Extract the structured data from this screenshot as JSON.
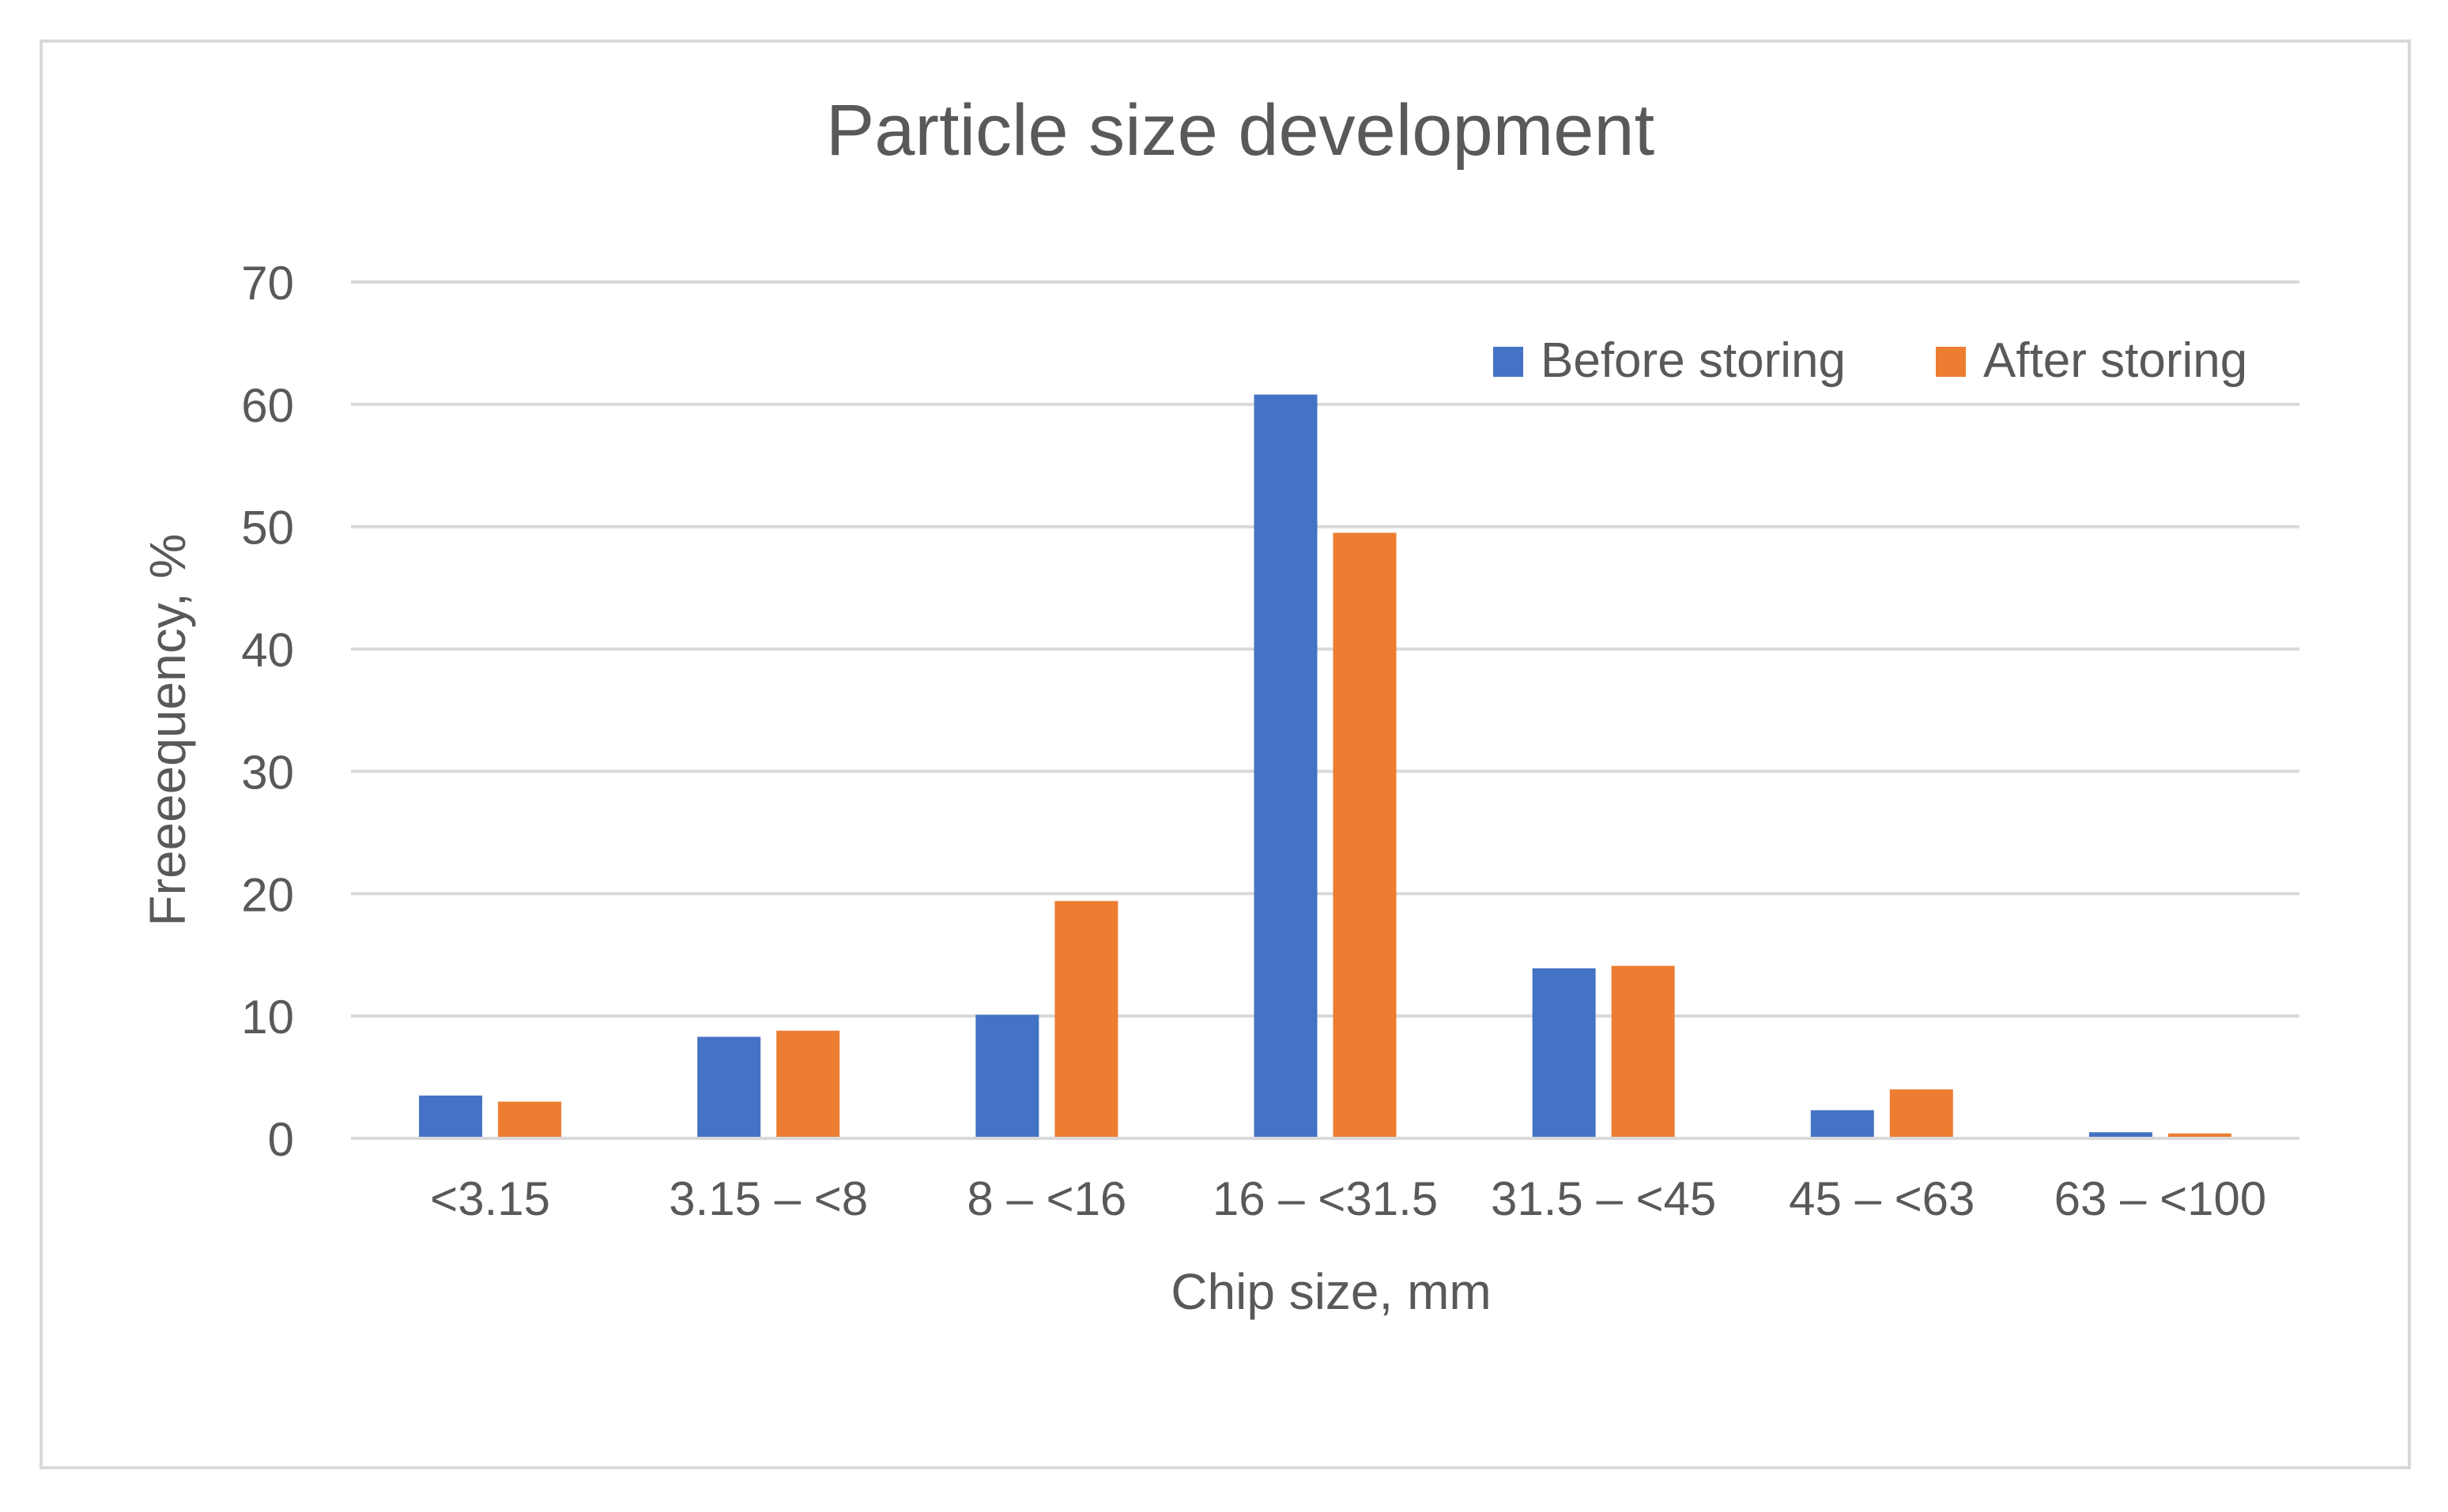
{
  "chart_data": {
    "type": "bar",
    "title": "Particle size development",
    "xlabel": "Chip size, mm",
    "ylabel": "Freeeequency, %",
    "categories": [
      "<3.15",
      "3.15 – <8",
      "8 – <16",
      "16 – <31.5",
      "31.5 – <45",
      "45 – <63",
      "63 – <100"
    ],
    "series": [
      {
        "name": "Before storing",
        "color": "#4472c4",
        "values": [
          3.5,
          8.3,
          10.1,
          60.8,
          13.9,
          2.3,
          0.5
        ]
      },
      {
        "name": "After storing",
        "color": "#ed7d31",
        "values": [
          3.0,
          8.8,
          19.4,
          49.5,
          14.1,
          4.0,
          0.4
        ]
      }
    ],
    "ylim": [
      0,
      70
    ],
    "yticks": [
      0,
      10,
      20,
      30,
      40,
      50,
      60,
      70
    ],
    "grid": true,
    "legend_position": "top-right"
  }
}
